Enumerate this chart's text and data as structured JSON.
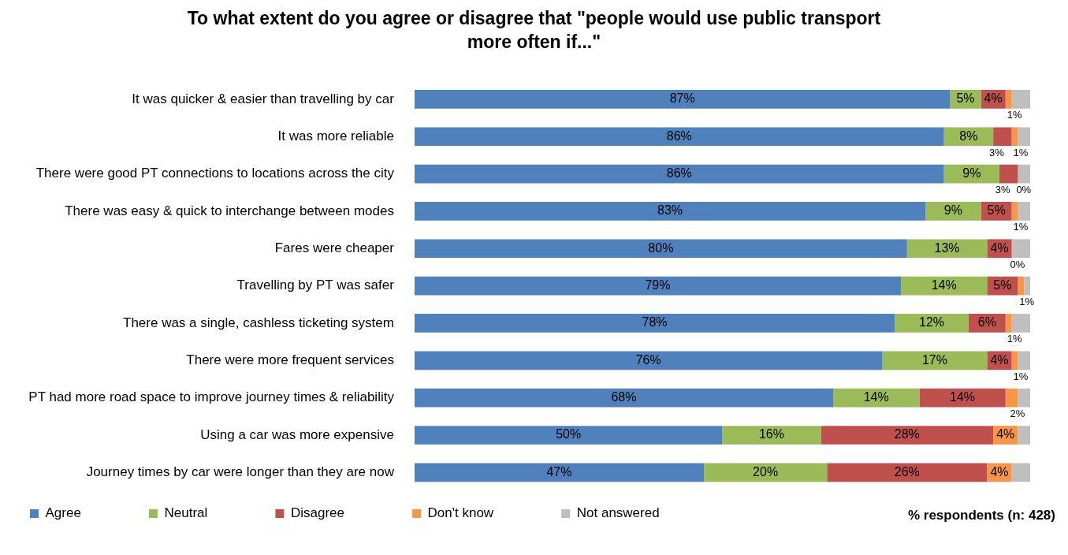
{
  "chart_data": {
    "type": "bar",
    "orientation": "horizontal",
    "stacked": true,
    "title": "To what extent do you agree or disagree that \"people would use public transport more often if...\"",
    "categories": [
      "It was quicker & easier than travelling by car",
      "It was more reliable",
      "There were good PT connections to locations across the city",
      "There was easy & quick to interchange between modes",
      "Fares were cheaper",
      "Travelling by PT was safer",
      "There was a single, cashless ticketing system",
      "There were more frequent services",
      "PT had more road space to improve journey times & reliability",
      "Using a car was more expensive",
      "Journey times by car were longer than they are now"
    ],
    "series": [
      {
        "name": "Agree",
        "color": "#4f81bd",
        "values": [
          87,
          86,
          86,
          83,
          80,
          79,
          78,
          76,
          68,
          50,
          47
        ],
        "value_labels": [
          "87%",
          "86%",
          "86%",
          "83%",
          "80%",
          "79%",
          "78%",
          "76%",
          "68%",
          "50%",
          "47%"
        ]
      },
      {
        "name": "Neutral",
        "color": "#9bbb59",
        "values": [
          5,
          8,
          9,
          9,
          13,
          14,
          12,
          17,
          14,
          16,
          20
        ],
        "value_labels": [
          "5%",
          "8%",
          "9%",
          "9%",
          "13%",
          "14%",
          "12%",
          "17%",
          "14%",
          "16%",
          "20%"
        ]
      },
      {
        "name": "Disagree",
        "color": "#c0504d",
        "values": [
          4,
          3,
          3,
          5,
          4,
          5,
          6,
          4,
          14,
          28,
          26
        ],
        "value_labels": [
          "4%",
          "3%",
          "3%",
          "5%",
          "4%",
          "5%",
          "6%",
          "4%",
          "14%",
          "28%",
          "26%"
        ]
      },
      {
        "name": "Don't know",
        "color": "#f79646",
        "values": [
          1,
          1,
          0,
          1,
          0,
          1,
          1,
          1,
          2,
          4,
          4
        ],
        "value_labels": [
          "1%",
          "1%",
          "0%",
          "1%",
          "0%",
          "1%",
          "1%",
          "1%",
          "2%",
          "4%",
          "4%"
        ]
      },
      {
        "name": "Not answered",
        "color": "#bfbfbf",
        "values": [
          3,
          2,
          2,
          2,
          3,
          1,
          3,
          2,
          2,
          2,
          3
        ],
        "value_labels": [
          null,
          null,
          null,
          null,
          null,
          null,
          null,
          null,
          null,
          null,
          null
        ]
      }
    ],
    "xlim": [
      0,
      100
    ],
    "tick_labels": "y",
    "grid": false,
    "legend": "bottom",
    "annotations": [
      "% respondents (n: 428)"
    ]
  }
}
